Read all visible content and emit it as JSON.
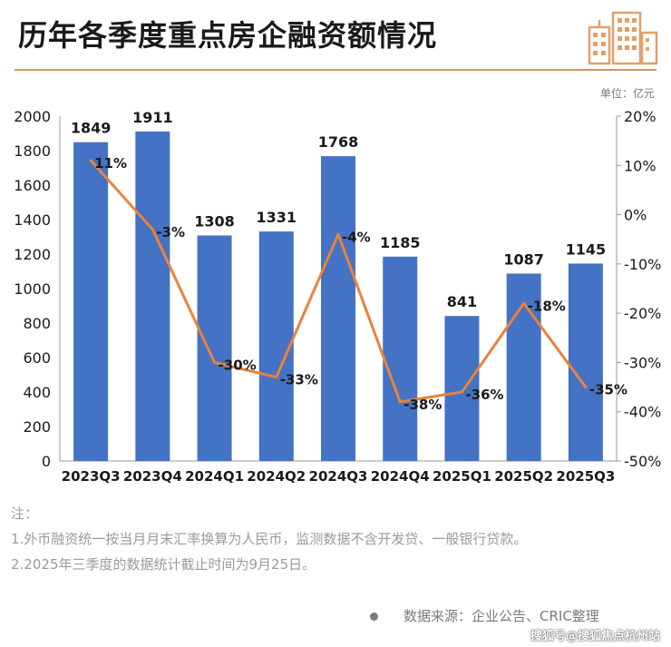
{
  "header": {
    "title": "历年各季度重点房企融资额情况",
    "unit": "单位：亿元"
  },
  "chart_data": {
    "type": "bar",
    "categories": [
      "2023Q3",
      "2023Q4",
      "2024Q1",
      "2024Q2",
      "2024Q3",
      "2024Q4",
      "2025Q1",
      "2025Q2",
      "2025Q3"
    ],
    "series": [
      {
        "type": "bar",
        "axis": "left",
        "values": [
          1849,
          1911,
          1308,
          1331,
          1768,
          1185,
          841,
          1087,
          1145
        ]
      },
      {
        "type": "line",
        "axis": "right",
        "values": [
          11,
          -3,
          -30,
          -33,
          -4,
          -38,
          -36,
          -18,
          -35
        ]
      }
    ],
    "line_labels": [
      "11%",
      "-3%",
      "-30%",
      "-33%",
      "-4%",
      "-38%",
      "-36%",
      "-18%",
      "-35%"
    ],
    "left_axis": {
      "ylim": [
        0,
        2000
      ],
      "ticks": [
        "0",
        "200",
        "400",
        "600",
        "800",
        "1000",
        "1200",
        "1400",
        "1600",
        "1800",
        "2000"
      ]
    },
    "right_axis": {
      "ylim": [
        -50,
        20
      ],
      "ticks": [
        "-50%",
        "-40%",
        "-30%",
        "-20%",
        "-10%",
        "0%",
        "10%",
        "20%"
      ]
    },
    "colors": {
      "bar": "#4472c4",
      "line": "#e8833a"
    },
    "grid": false
  },
  "notes": {
    "heading": "注：",
    "line1": "1.外币融资统一按当月月末汇率换算为人民币，监测数据不含开发贷、一般银行贷款。",
    "line2": "2.2025年三季度的数据统计截止时间为9月25日。"
  },
  "footer": {
    "source": "数据来源：企业公告、CRIC整理",
    "watermark": "搜狐号@搜狐焦点杭州站"
  }
}
